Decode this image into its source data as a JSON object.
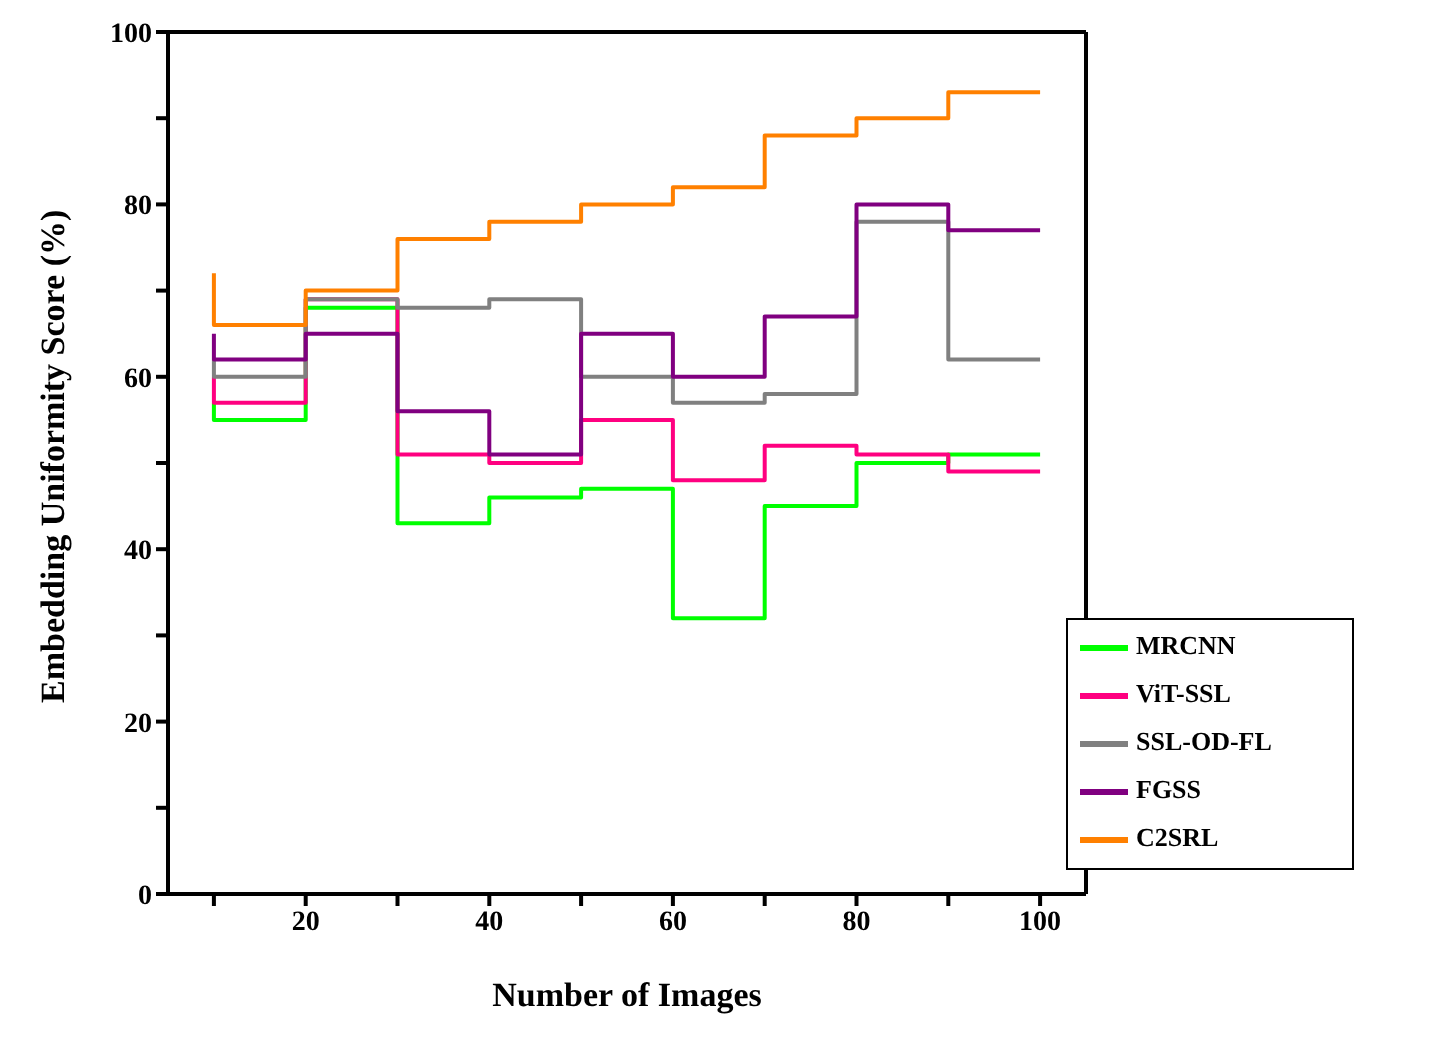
{
  "chart_data": {
    "type": "step",
    "xlabel": "Number of Images",
    "ylabel": "Embedding Uniformity Score (%)",
    "x": [
      10,
      20,
      30,
      40,
      50,
      60,
      70,
      80,
      90,
      100
    ],
    "series": [
      {
        "name": "MRCNN",
        "color": "#00ff00",
        "values": [
          57,
          55,
          68,
          43,
          46,
          47,
          32,
          45,
          50,
          51
        ]
      },
      {
        "name": "ViT-SSL",
        "color": "#ff0080",
        "values": [
          60,
          57,
          69,
          51,
          50,
          55,
          48,
          52,
          51,
          49
        ]
      },
      {
        "name": "SSL-OD-FL",
        "color": "#808080",
        "values": [
          62,
          60,
          69,
          68,
          69,
          60,
          57,
          58,
          78,
          62
        ]
      },
      {
        "name": "FGSS",
        "color": "#800080",
        "values": [
          65,
          62,
          65,
          56,
          51,
          65,
          60,
          67,
          80,
          77
        ]
      },
      {
        "name": "C2SRL",
        "color": "#ff8000",
        "values": [
          72,
          66,
          70,
          76,
          78,
          80,
          82,
          88,
          90,
          93
        ]
      }
    ],
    "xlim": [
      5,
      105
    ],
    "xticks": [
      {
        "value": 10,
        "label": null
      },
      20,
      {
        "value": 30,
        "label": null
      },
      40,
      {
        "value": 50,
        "label": null
      },
      60,
      {
        "value": 70,
        "label": null
      },
      80,
      {
        "value": 90,
        "label": null
      },
      100
    ],
    "ylim": [
      0,
      100
    ],
    "yticks": [
      0,
      {
        "value": 10,
        "label": null
      },
      20,
      {
        "value": 30,
        "label": null
      },
      40,
      {
        "value": 50,
        "label": null
      },
      60,
      {
        "value": 70,
        "label": null
      },
      80,
      {
        "value": 90,
        "label": null
      },
      100
    ],
    "grid": false,
    "legend": "bottom right",
    "line_style": "solid",
    "marker": "none"
  }
}
